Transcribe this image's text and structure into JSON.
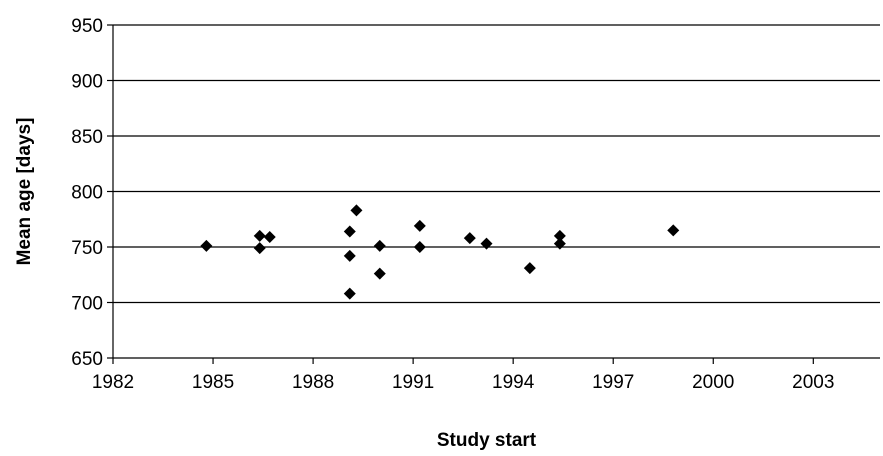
{
  "chart_data": {
    "type": "scatter",
    "title": "",
    "xlabel": "Study start",
    "ylabel": "Mean age [days]",
    "xlim": [
      1982,
      2005
    ],
    "ylim": [
      650,
      950
    ],
    "xticks": [
      1982,
      1985,
      1988,
      1991,
      1994,
      1997,
      2000,
      2003
    ],
    "yticks": [
      650,
      700,
      750,
      800,
      850,
      900,
      950
    ],
    "grid": "horizontal",
    "marker": "diamond",
    "marker_color": "#000000",
    "series": [
      {
        "x": [
          1984.8,
          1986.4,
          1986.4,
          1986.7,
          1989.1,
          1989.1,
          1989.1,
          1989.3,
          1990.0,
          1990.0,
          1991.2,
          1991.2,
          1992.7,
          1993.2,
          1994.5,
          1995.4,
          1995.4,
          1998.8
        ],
        "y": [
          751,
          760,
          749,
          759,
          764,
          742,
          708,
          783,
          751,
          726,
          769,
          750,
          758,
          753,
          731,
          760,
          753,
          765
        ]
      }
    ]
  }
}
